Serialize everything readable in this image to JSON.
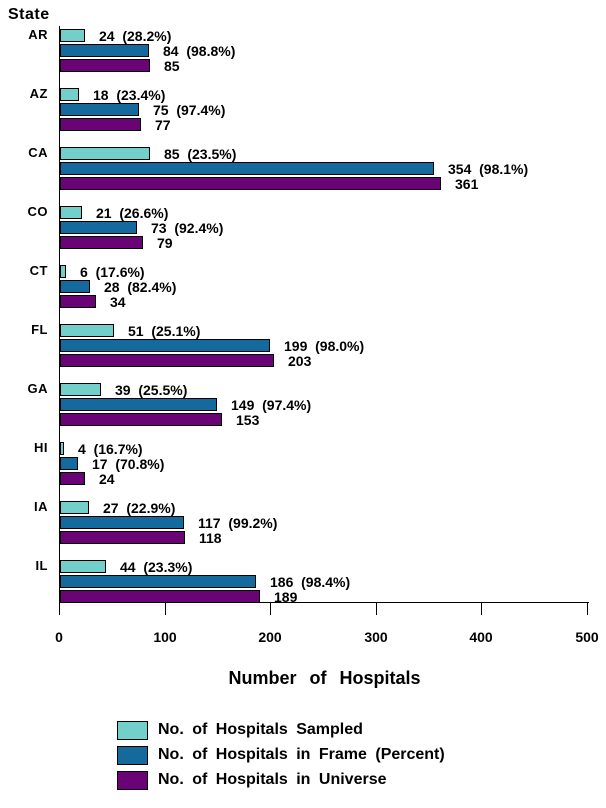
{
  "chart_data": {
    "type": "bar",
    "orientation": "horizontal",
    "title": "",
    "ylabel": "State",
    "xlabel": "Number of Hospitals",
    "xlim": [
      0,
      500
    ],
    "xticks": [
      0,
      100,
      200,
      300,
      400,
      500
    ],
    "grid": false,
    "legend_position": "bottom-left",
    "categories": [
      "AR",
      "AZ",
      "CA",
      "CO",
      "CT",
      "FL",
      "GA",
      "HI",
      "IA",
      "IL"
    ],
    "series": [
      {
        "name": "No. of Hospitals Sampled",
        "color": "#72CFC9",
        "values": [
          24,
          18,
          85,
          21,
          6,
          51,
          39,
          4,
          27,
          44
        ],
        "bar_labels": [
          "24  (28.2%)",
          "18  (23.4%)",
          "85  (23.5%)",
          "21  (26.6%)",
          "6  (17.6%)",
          "51  (25.1%)",
          "39  (25.5%)",
          "4  (16.7%)",
          "27  (22.9%)",
          "44  (23.3%)"
        ]
      },
      {
        "name": "No. of Hospitals in Frame (Percent)",
        "color": "#156A9D",
        "values": [
          84,
          75,
          354,
          73,
          28,
          199,
          149,
          17,
          117,
          186
        ],
        "bar_labels": [
          "84  (98.8%)",
          "75  (97.4%)",
          "354  (98.1%)",
          "73  (92.4%)",
          "28  (82.4%)",
          "199  (98.0%)",
          "149  (97.4%)",
          "17  (70.8%)",
          "117  (99.2%)",
          "186  (98.4%)"
        ]
      },
      {
        "name": "No. of Hospitals in Universe",
        "color": "#6A0375",
        "values": [
          85,
          77,
          361,
          79,
          34,
          203,
          153,
          24,
          118,
          189
        ],
        "bar_labels": [
          "85",
          "77",
          "361",
          "79",
          "34",
          "203",
          "153",
          "24",
          "118",
          "189"
        ]
      }
    ]
  }
}
